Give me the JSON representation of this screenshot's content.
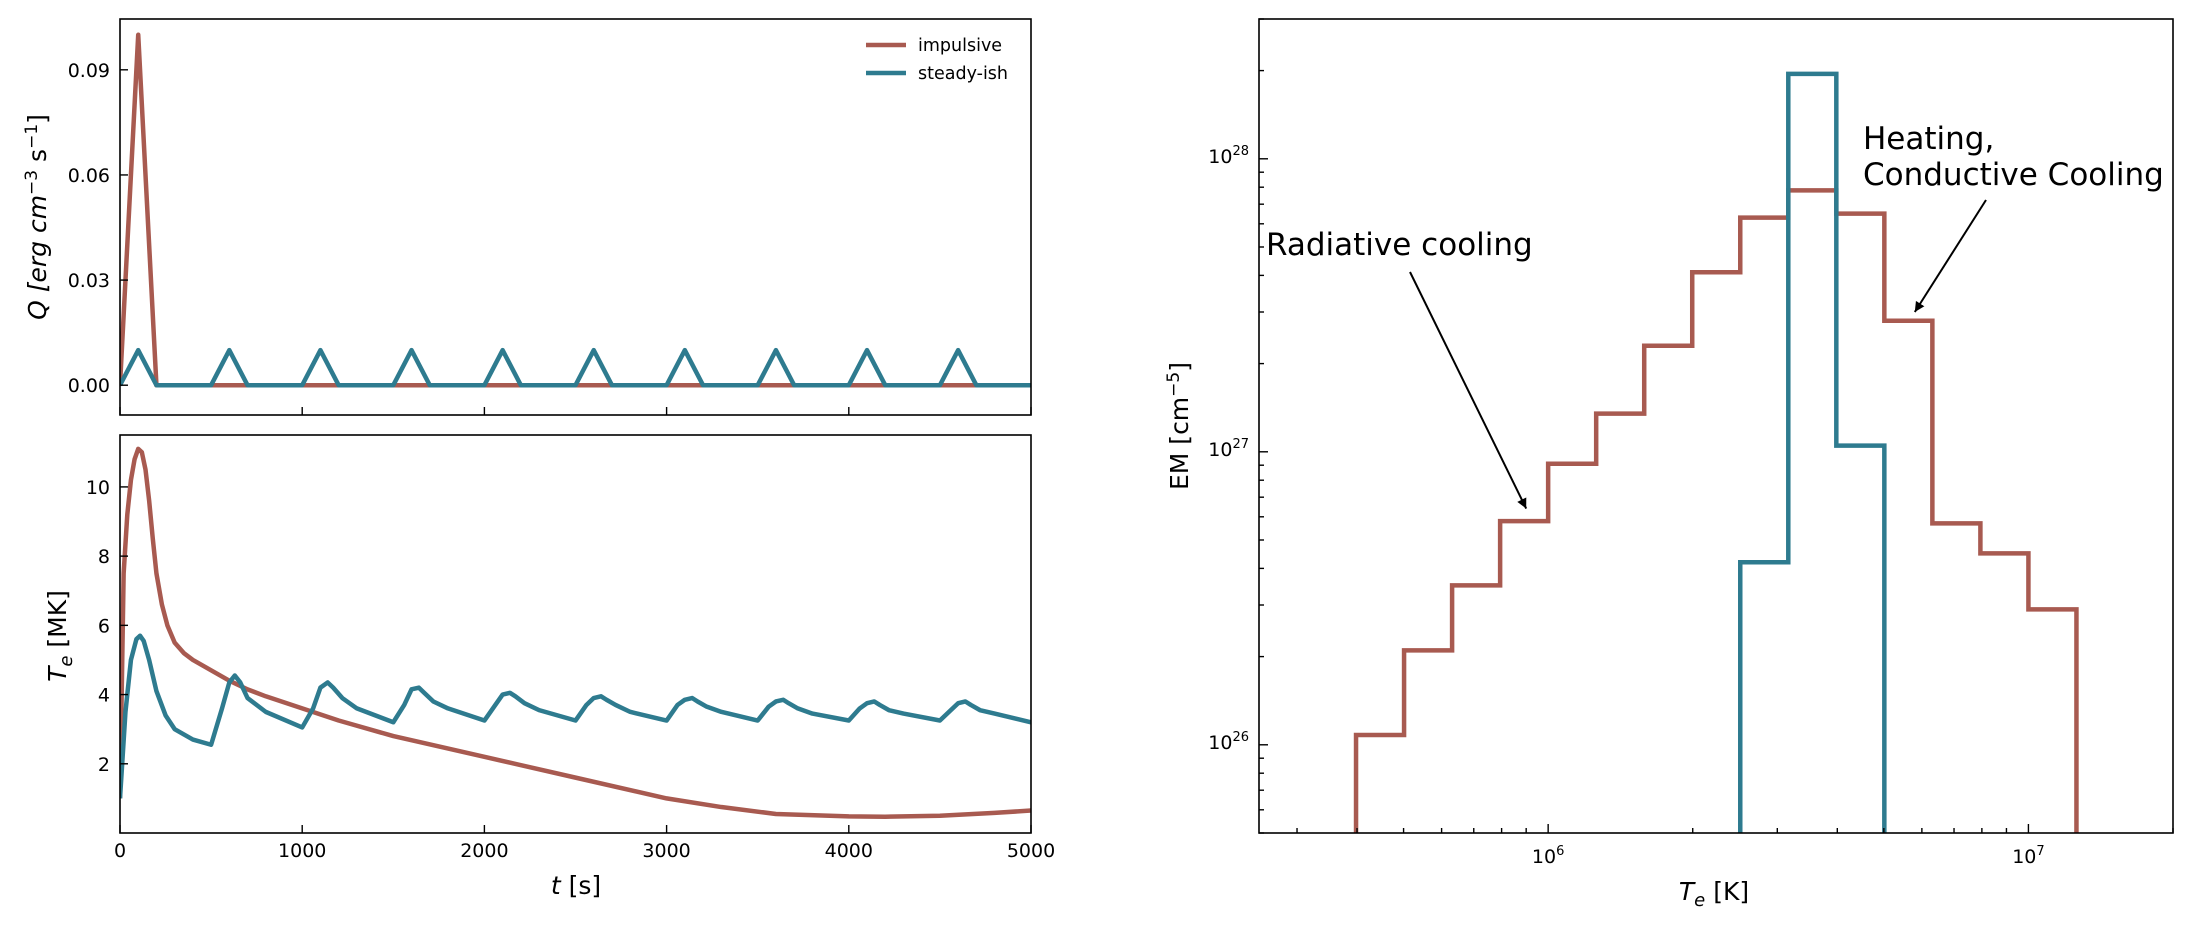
{
  "colors": {
    "impulsive": "#a85a50",
    "steady": "#2e7b8f"
  },
  "chart_data": [
    {
      "type": "line",
      "panel": "heating-rate",
      "ylabel": {
        "pre": "Q [erg cm",
        "exp1": "−3",
        "mid": " s",
        "exp2": "−1",
        "post": "]"
      },
      "xlim": [
        0,
        5000
      ],
      "ylim": [
        -0.0085,
        0.1045
      ],
      "yticks": [
        "0.00",
        "0.03",
        "0.06",
        "0.09"
      ],
      "ytick_values": [
        0,
        0.03,
        0.06,
        0.09
      ],
      "xtick_values": [
        0,
        1000,
        2000,
        3000,
        4000,
        5000
      ],
      "legend": {
        "position": "top-right",
        "entries": [
          "impulsive",
          "steady-ish"
        ]
      },
      "series": [
        {
          "name": "impulsive",
          "color_key": "impulsive",
          "x": [
            0,
            100,
            200,
            5000
          ],
          "y": [
            0,
            0.1,
            0,
            0
          ]
        },
        {
          "name": "steady-ish",
          "color_key": "steady",
          "x": [
            0,
            100,
            200,
            500,
            600,
            700,
            1000,
            1100,
            1200,
            1500,
            1600,
            1700,
            2000,
            2100,
            2200,
            2500,
            2600,
            2700,
            3000,
            3100,
            3200,
            3500,
            3600,
            3700,
            4000,
            4100,
            4200,
            4500,
            4600,
            4700,
            5000
          ],
          "y": [
            0,
            0.01,
            0,
            0,
            0.01,
            0,
            0,
            0.01,
            0,
            0,
            0.01,
            0,
            0,
            0.01,
            0,
            0,
            0.01,
            0,
            0,
            0.01,
            0,
            0,
            0.01,
            0,
            0,
            0.01,
            0,
            0,
            0.01,
            0,
            0
          ]
        }
      ]
    },
    {
      "type": "line",
      "panel": "temperature",
      "ylabel": {
        "pre": "T",
        "sub": "e",
        "post": " [MK]"
      },
      "xlabel": {
        "pre": "t",
        "post": " [s]"
      },
      "xlim": [
        0,
        5000
      ],
      "ylim": [
        0.0,
        11.5
      ],
      "xticks": [
        "0",
        "1000",
        "2000",
        "3000",
        "4000",
        "5000"
      ],
      "xtick_values": [
        0,
        1000,
        2000,
        3000,
        4000,
        5000
      ],
      "yticks": [
        "2",
        "4",
        "6",
        "8",
        "10"
      ],
      "ytick_values": [
        2,
        4,
        6,
        8,
        10
      ],
      "series": [
        {
          "name": "impulsive",
          "color_key": "impulsive",
          "x": [
            0,
            20,
            40,
            60,
            80,
            100,
            120,
            140,
            160,
            180,
            200,
            230,
            260,
            300,
            350,
            400,
            500,
            600,
            700,
            800,
            1000,
            1200,
            1500,
            2000,
            2500,
            3000,
            3300,
            3600,
            4000,
            4200,
            4500,
            4800,
            5000
          ],
          "y": [
            1.0,
            7.5,
            9.2,
            10.2,
            10.8,
            11.1,
            11.0,
            10.5,
            9.6,
            8.5,
            7.5,
            6.6,
            6.0,
            5.5,
            5.2,
            5.0,
            4.7,
            4.4,
            4.15,
            3.95,
            3.6,
            3.25,
            2.8,
            2.2,
            1.6,
            1.0,
            0.75,
            0.55,
            0.48,
            0.47,
            0.5,
            0.58,
            0.65
          ]
        },
        {
          "name": "steady-ish",
          "color_key": "steady",
          "x": [
            0,
            30,
            60,
            90,
            110,
            130,
            160,
            200,
            250,
            300,
            400,
            500,
            560,
            600,
            630,
            660,
            700,
            800,
            1000,
            1060,
            1100,
            1140,
            1170,
            1220,
            1300,
            1500,
            1560,
            1600,
            1640,
            1670,
            1720,
            1800,
            2000,
            2060,
            2100,
            2140,
            2170,
            2220,
            2300,
            2500,
            2560,
            2600,
            2640,
            2670,
            2720,
            2800,
            3000,
            3060,
            3100,
            3140,
            3170,
            3220,
            3300,
            3500,
            3560,
            3600,
            3640,
            3670,
            3720,
            3800,
            4000,
            4060,
            4100,
            4140,
            4170,
            4220,
            4300,
            4500,
            4560,
            4600,
            4640,
            4670,
            4720,
            4800,
            5000
          ],
          "y": [
            1.0,
            3.5,
            5.0,
            5.6,
            5.7,
            5.55,
            5.0,
            4.1,
            3.4,
            3.0,
            2.7,
            2.55,
            3.6,
            4.35,
            4.55,
            4.35,
            3.9,
            3.5,
            3.05,
            3.6,
            4.2,
            4.35,
            4.2,
            3.9,
            3.6,
            3.2,
            3.7,
            4.15,
            4.2,
            4.05,
            3.8,
            3.6,
            3.25,
            3.7,
            4.0,
            4.05,
            3.95,
            3.75,
            3.55,
            3.25,
            3.7,
            3.9,
            3.95,
            3.85,
            3.7,
            3.5,
            3.25,
            3.7,
            3.85,
            3.9,
            3.8,
            3.65,
            3.5,
            3.25,
            3.65,
            3.8,
            3.85,
            3.75,
            3.6,
            3.45,
            3.25,
            3.6,
            3.75,
            3.8,
            3.7,
            3.55,
            3.45,
            3.25,
            3.55,
            3.75,
            3.8,
            3.7,
            3.55,
            3.45,
            3.2
          ]
        }
      ]
    },
    {
      "type": "step",
      "panel": "emission-measure",
      "xscale": "log",
      "yscale": "log",
      "xlabel": {
        "pre": "T",
        "sub": "e",
        "post": " [K]"
      },
      "ylabel": {
        "pre": "EM [cm",
        "exp": "−5",
        "post": "]"
      },
      "xlim": [
        250000,
        20000000
      ],
      "ylim": [
        5e+25,
        3e+28
      ],
      "xticks": [
        {
          "value": 1000000,
          "base": "10",
          "exp": "6"
        },
        {
          "value": 10000000,
          "base": "10",
          "exp": "7"
        }
      ],
      "yticks": [
        {
          "value": 1e+26,
          "base": "10",
          "exp": "26"
        },
        {
          "value": 1e+27,
          "base": "10",
          "exp": "27"
        },
        {
          "value": 1e+28,
          "base": "10",
          "exp": "28"
        }
      ],
      "bin_edges": [
        398107,
        501187,
        630957,
        794328,
        1000000,
        1258925,
        1584893,
        1995262,
        2511886,
        3162278,
        3981072,
        5011872,
        6309573,
        7943282,
        10000000,
        12589254
      ],
      "series": [
        {
          "name": "impulsive",
          "color_key": "impulsive",
          "values": [
            1.08e+26,
            2.1e+26,
            3.5e+26,
            5.8e+26,
            9.1e+26,
            1.35e+27,
            2.3e+27,
            4.1e+27,
            6.3e+27,
            7.8e+27,
            6.5e+27,
            2.8e+27,
            5.7e+26,
            4.5e+26,
            2.9e+26
          ]
        },
        {
          "name": "steady-ish",
          "color_key": "steady",
          "values": [
            null,
            null,
            null,
            null,
            null,
            null,
            null,
            null,
            4.2e+26,
            1.95e+28,
            1.05e+27,
            null,
            null,
            null,
            null
          ]
        }
      ],
      "annotations": [
        {
          "lines": [
            "Radiative cooling"
          ],
          "arrow_to": {
            "x": 900000,
            "y": 6.4e+26
          }
        },
        {
          "lines": [
            "Heating,",
            "Conductive Cooling"
          ],
          "arrow_to": {
            "x": 5800000,
            "y": 3e+27
          }
        }
      ]
    }
  ]
}
